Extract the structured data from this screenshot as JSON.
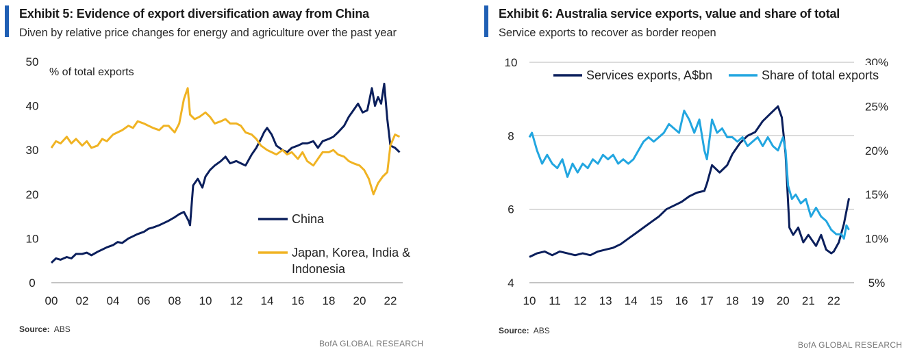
{
  "colors": {
    "accent": "#1f5fb4",
    "navy": "#0b1f5c",
    "gold": "#f0b323",
    "lightblue": "#22a6e0",
    "grid": "#c8c8c8",
    "axis": "#8a8a8a"
  },
  "left": {
    "title": "Exhibit 5: Evidence of export diversification away from China",
    "subtitle": "Diven by relative price changes for energy and agriculture over the past year",
    "source_label": "Source:",
    "source_value": "ABS",
    "brand": "BofA GLOBAL RESEARCH"
  },
  "right": {
    "title": "Exhibit 6: Australia service exports, value and share of total",
    "subtitle": "Service exports to recover as border reopen",
    "source_label": "Source:",
    "source_value": "ABS",
    "brand": "BofA GLOBAL RESEARCH"
  },
  "chart_data": [
    {
      "type": "line",
      "title": "Exhibit 5: Evidence of export diversification away from China",
      "ylabel": "% of total exports",
      "xlabel": "",
      "xlim": [
        2000,
        2022.8
      ],
      "ylim": [
        0,
        50
      ],
      "yticks": [
        0,
        10,
        20,
        30,
        40,
        50
      ],
      "xticks": [
        2000,
        2002,
        2004,
        2006,
        2008,
        2010,
        2012,
        2014,
        2016,
        2018,
        2020,
        2022
      ],
      "xtick_labels": [
        "00",
        "02",
        "04",
        "06",
        "08",
        "10",
        "12",
        "14",
        "16",
        "18",
        "20",
        "22"
      ],
      "grid": false,
      "legend_position": "bottom-right",
      "series": [
        {
          "name": "China",
          "color": "#0b1f5c",
          "x": [
            2000.0,
            2000.3,
            2000.6,
            2001.0,
            2001.3,
            2001.6,
            2002.0,
            2002.3,
            2002.6,
            2003.0,
            2003.3,
            2003.6,
            2004.0,
            2004.3,
            2004.6,
            2005.0,
            2005.3,
            2005.6,
            2006.0,
            2006.3,
            2006.6,
            2007.0,
            2007.3,
            2007.6,
            2008.0,
            2008.3,
            2008.6,
            2008.9,
            2009.0,
            2009.2,
            2009.5,
            2009.8,
            2010.0,
            2010.3,
            2010.6,
            2011.0,
            2011.3,
            2011.6,
            2012.0,
            2012.3,
            2012.6,
            2013.0,
            2013.3,
            2013.6,
            2013.8,
            2014.0,
            2014.3,
            2014.6,
            2015.0,
            2015.3,
            2015.6,
            2016.0,
            2016.3,
            2016.6,
            2017.0,
            2017.3,
            2017.6,
            2018.0,
            2018.3,
            2018.6,
            2019.0,
            2019.3,
            2019.6,
            2019.9,
            2020.2,
            2020.5,
            2020.8,
            2021.0,
            2021.2,
            2021.4,
            2021.6,
            2021.8,
            2022.0,
            2022.3,
            2022.6
          ],
          "y": [
            4.5,
            5.5,
            5.2,
            5.8,
            5.5,
            6.5,
            6.5,
            6.8,
            6.2,
            7.0,
            7.5,
            8.0,
            8.5,
            9.2,
            9.0,
            10.0,
            10.5,
            11.0,
            11.5,
            12.2,
            12.5,
            13.0,
            13.5,
            14.0,
            14.8,
            15.5,
            16.0,
            14.0,
            13.0,
            22.0,
            23.5,
            21.5,
            24.0,
            25.5,
            26.5,
            27.5,
            28.5,
            27.0,
            27.5,
            27.0,
            26.5,
            29.0,
            30.5,
            32.5,
            34.0,
            35.0,
            33.5,
            31.0,
            30.0,
            29.5,
            30.5,
            31.0,
            31.5,
            31.5,
            32.0,
            30.5,
            32.0,
            32.5,
            33.0,
            34.0,
            35.5,
            37.5,
            39.0,
            40.5,
            38.5,
            39.0,
            44.0,
            40.0,
            42.0,
            40.5,
            45.0,
            37.0,
            31.0,
            30.5,
            29.5
          ]
        },
        {
          "name": "Japan, Korea, India & Indonesia",
          "color": "#f0b323",
          "x": [
            2000.0,
            2000.3,
            2000.6,
            2001.0,
            2001.3,
            2001.6,
            2002.0,
            2002.3,
            2002.6,
            2003.0,
            2003.3,
            2003.6,
            2004.0,
            2004.3,
            2004.6,
            2005.0,
            2005.3,
            2005.6,
            2006.0,
            2006.3,
            2006.6,
            2007.0,
            2007.3,
            2007.6,
            2008.0,
            2008.3,
            2008.6,
            2008.85,
            2009.0,
            2009.3,
            2009.6,
            2010.0,
            2010.3,
            2010.6,
            2011.0,
            2011.3,
            2011.6,
            2012.0,
            2012.3,
            2012.6,
            2013.0,
            2013.3,
            2013.6,
            2014.0,
            2014.3,
            2014.6,
            2015.0,
            2015.3,
            2015.6,
            2016.0,
            2016.3,
            2016.6,
            2017.0,
            2017.3,
            2017.6,
            2018.0,
            2018.3,
            2018.6,
            2019.0,
            2019.3,
            2019.6,
            2020.0,
            2020.3,
            2020.6,
            2020.9,
            2021.2,
            2021.5,
            2021.8,
            2022.0,
            2022.3,
            2022.6
          ],
          "y": [
            30.5,
            32.0,
            31.5,
            33.0,
            31.5,
            32.5,
            31.0,
            32.0,
            30.5,
            31.0,
            32.5,
            32.0,
            33.5,
            34.0,
            34.5,
            35.5,
            35.0,
            36.5,
            36.0,
            35.5,
            35.0,
            34.5,
            35.5,
            35.5,
            34.0,
            36.0,
            41.5,
            44.0,
            38.0,
            37.0,
            37.5,
            38.5,
            37.5,
            36.0,
            36.5,
            37.0,
            36.0,
            36.0,
            35.5,
            34.0,
            33.5,
            32.5,
            31.0,
            30.0,
            29.5,
            29.0,
            30.0,
            29.0,
            29.5,
            28.0,
            29.5,
            27.5,
            26.5,
            28.0,
            29.5,
            29.5,
            30.0,
            29.0,
            28.5,
            27.5,
            27.0,
            26.5,
            25.5,
            23.5,
            20.0,
            22.5,
            24.0,
            25.0,
            31.0,
            33.5,
            33.0
          ]
        }
      ],
      "legend": [
        "China",
        "Japan, Korea, India &",
        "Indonesia"
      ]
    },
    {
      "type": "line",
      "title": "Exhibit 6: Australia service exports, value and share of total",
      "xlim": [
        2010,
        2022.8
      ],
      "ylim": [
        4,
        10
      ],
      "y2lim": [
        5,
        30
      ],
      "yticks": [
        4,
        6,
        8,
        10
      ],
      "y2ticks": [
        5,
        10,
        15,
        20,
        25,
        30
      ],
      "y2tick_labels": [
        "5%",
        "10%",
        "15%",
        "20%",
        "25%",
        "30%"
      ],
      "xticks": [
        2010,
        2011,
        2012,
        2013,
        2014,
        2015,
        2016,
        2017,
        2018,
        2019,
        2020,
        2021,
        2022
      ],
      "xtick_labels": [
        "10",
        "11",
        "12",
        "13",
        "14",
        "15",
        "16",
        "17",
        "18",
        "19",
        "20",
        "21",
        "22"
      ],
      "grid": true,
      "legend_position": "top",
      "series": [
        {
          "name": "Services exports, A$bn",
          "axis": "left",
          "color": "#0b1f5c",
          "x": [
            2010.0,
            2010.3,
            2010.6,
            2010.9,
            2011.2,
            2011.5,
            2011.8,
            2012.1,
            2012.4,
            2012.7,
            2013.0,
            2013.3,
            2013.6,
            2013.9,
            2014.2,
            2014.5,
            2014.8,
            2015.1,
            2015.4,
            2015.7,
            2016.0,
            2016.3,
            2016.6,
            2016.9,
            2017.0,
            2017.2,
            2017.5,
            2017.8,
            2018.0,
            2018.3,
            2018.6,
            2018.9,
            2019.2,
            2019.5,
            2019.8,
            2019.95,
            2020.1,
            2020.25,
            2020.4,
            2020.6,
            2020.8,
            2021.0,
            2021.3,
            2021.5,
            2021.7,
            2021.9,
            2022.0,
            2022.2,
            2022.4,
            2022.6
          ],
          "y": [
            4.7,
            4.8,
            4.85,
            4.75,
            4.85,
            4.8,
            4.75,
            4.8,
            4.75,
            4.85,
            4.9,
            4.95,
            5.05,
            5.2,
            5.35,
            5.5,
            5.65,
            5.8,
            6.0,
            6.1,
            6.2,
            6.35,
            6.45,
            6.5,
            6.7,
            7.2,
            7.0,
            7.2,
            7.5,
            7.8,
            8.0,
            8.1,
            8.4,
            8.6,
            8.8,
            8.5,
            7.5,
            5.5,
            5.3,
            5.5,
            5.1,
            5.3,
            5.0,
            5.3,
            4.9,
            4.8,
            4.85,
            5.1,
            5.6,
            6.3
          ]
        },
        {
          "name": "Share of total exports",
          "axis": "right",
          "color": "#22a6e0",
          "x": [
            2010.0,
            2010.1,
            2010.3,
            2010.5,
            2010.7,
            2010.9,
            2011.1,
            2011.3,
            2011.5,
            2011.7,
            2011.9,
            2012.1,
            2012.3,
            2012.5,
            2012.7,
            2012.9,
            2013.1,
            2013.3,
            2013.5,
            2013.7,
            2013.9,
            2014.1,
            2014.3,
            2014.5,
            2014.7,
            2014.9,
            2015.1,
            2015.3,
            2015.5,
            2015.7,
            2015.9,
            2016.1,
            2016.3,
            2016.5,
            2016.7,
            2016.9,
            2017.0,
            2017.2,
            2017.4,
            2017.6,
            2017.8,
            2018.0,
            2018.2,
            2018.4,
            2018.6,
            2018.8,
            2019.0,
            2019.2,
            2019.4,
            2019.6,
            2019.8,
            2020.0,
            2020.1,
            2020.2,
            2020.35,
            2020.5,
            2020.7,
            2020.9,
            2021.1,
            2021.3,
            2021.5,
            2021.7,
            2021.9,
            2022.1,
            2022.3,
            2022.4,
            2022.5,
            2022.6
          ],
          "y": [
            21.5,
            22.0,
            20.0,
            18.5,
            19.5,
            18.5,
            18.0,
            19.0,
            17.0,
            18.5,
            17.5,
            18.5,
            18.0,
            19.0,
            18.5,
            19.5,
            19.0,
            19.5,
            18.5,
            19.0,
            18.5,
            19.0,
            20.0,
            21.0,
            21.5,
            21.0,
            21.5,
            22.0,
            23.0,
            22.5,
            22.0,
            24.5,
            23.5,
            22.0,
            23.5,
            20.0,
            19.0,
            23.5,
            22.0,
            22.5,
            21.5,
            21.5,
            21.0,
            21.5,
            20.5,
            21.0,
            21.5,
            20.5,
            21.5,
            20.5,
            20.0,
            21.5,
            20.0,
            16.0,
            14.5,
            15.0,
            14.0,
            14.5,
            12.5,
            13.5,
            12.5,
            12.0,
            11.0,
            10.5,
            10.5,
            10.0,
            11.5,
            11.0
          ]
        }
      ],
      "legend": [
        "Services exports, A$bn",
        "Share of total exports"
      ]
    }
  ]
}
